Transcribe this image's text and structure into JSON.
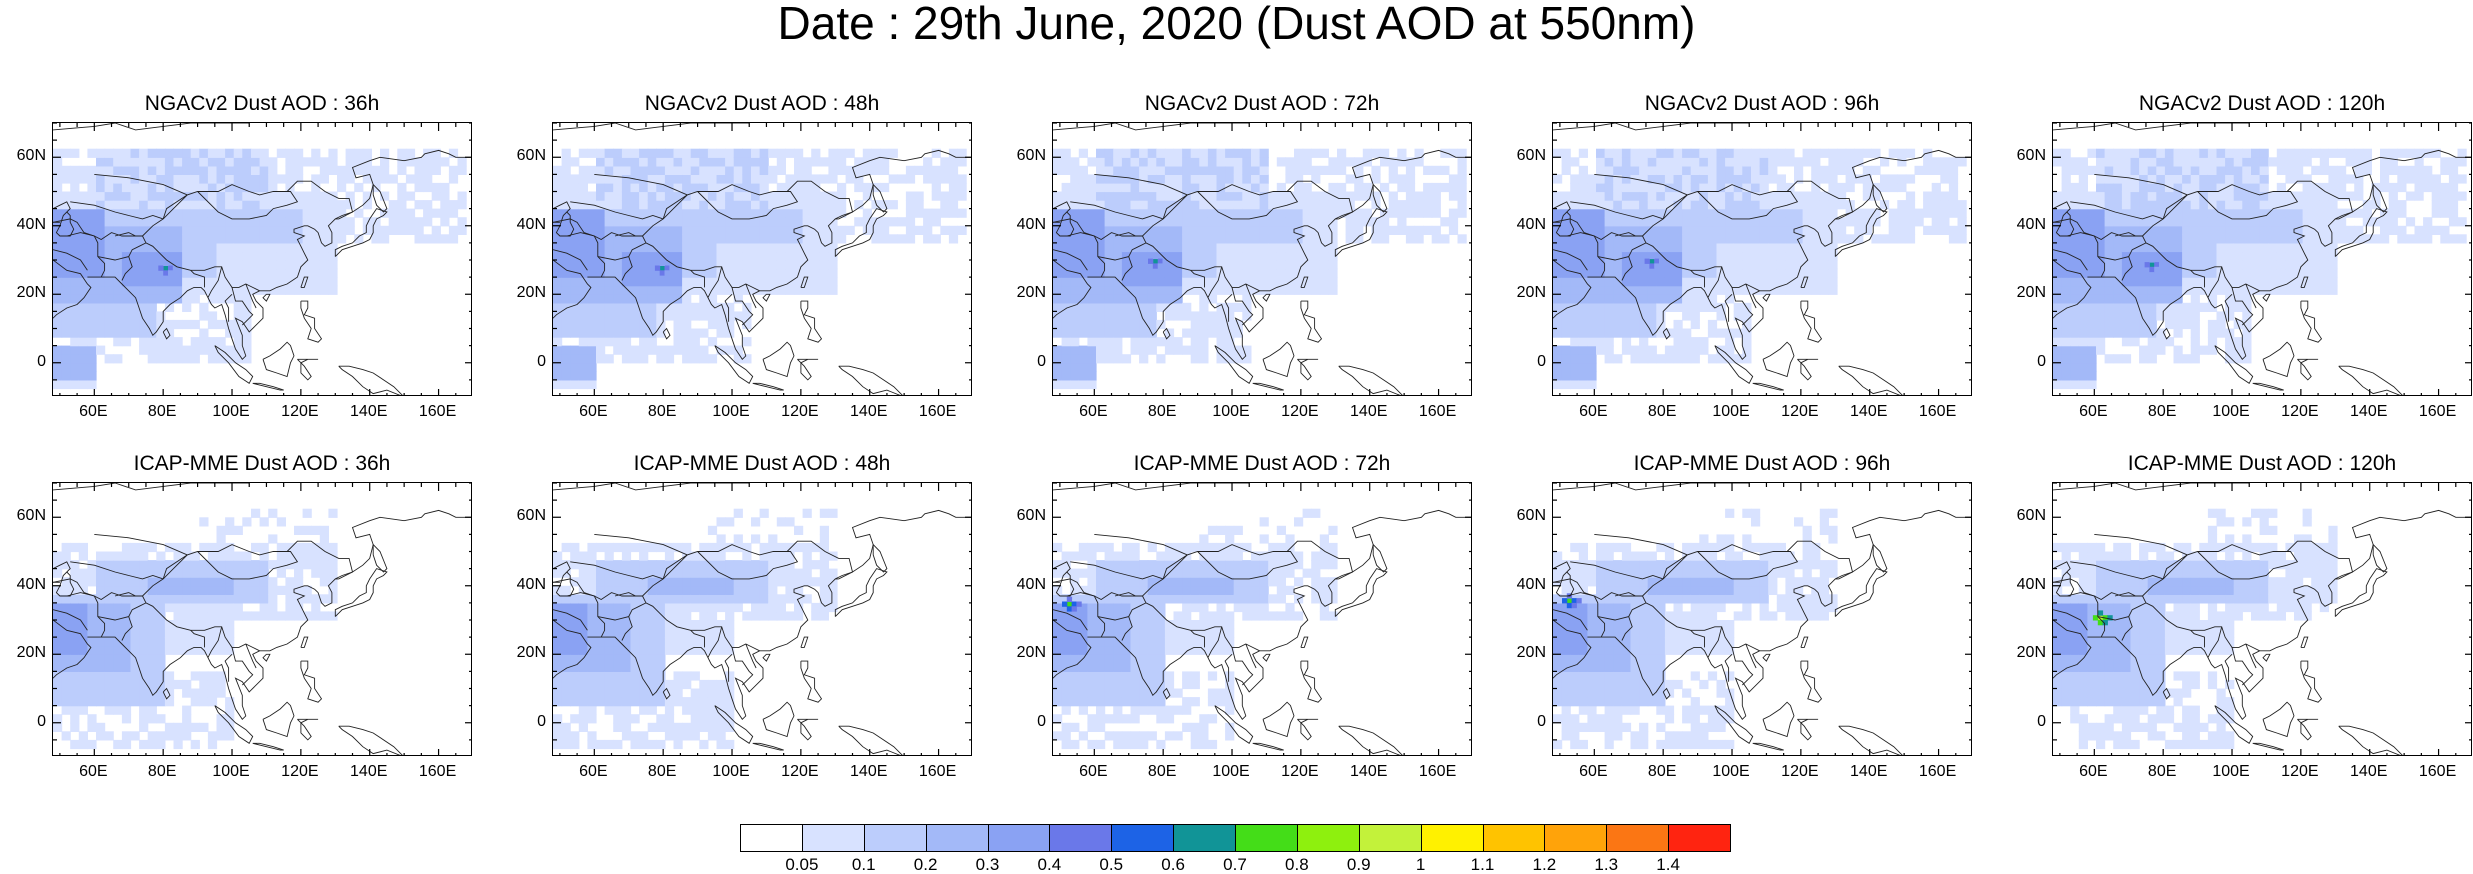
{
  "title": "Date : 29th June, 2020 (Dust AOD at 550nm)",
  "axes": {
    "lat_labels": [
      "60N",
      "40N",
      "20N",
      "0"
    ],
    "lat_values": [
      60,
      40,
      20,
      0
    ],
    "lon_labels": [
      "60E",
      "80E",
      "100E",
      "120E",
      "140E",
      "160E"
    ],
    "lon_values": [
      60,
      80,
      100,
      120,
      140,
      160
    ],
    "lon_range": [
      48,
      170
    ],
    "lat_range": [
      -10,
      70
    ]
  },
  "panels": [
    {
      "title": "NGACv2 Dust AOD : 36h",
      "model": "ngac",
      "lead": 36,
      "peak": [
        80,
        27
      ],
      "peak_level": 7
    },
    {
      "title": "NGACv2 Dust AOD : 48h",
      "model": "ngac",
      "lead": 48,
      "peak": [
        79,
        27
      ],
      "peak_level": 7
    },
    {
      "title": "NGACv2 Dust AOD : 72h",
      "model": "ngac",
      "lead": 72,
      "peak": [
        77,
        29
      ],
      "peak_level": 7
    },
    {
      "title": "NGACv2 Dust AOD : 96h",
      "model": "ngac",
      "lead": 96,
      "peak": [
        76,
        29
      ],
      "peak_level": 7
    },
    {
      "title": "NGACv2 Dust AOD : 120h",
      "model": "ngac",
      "lead": 120,
      "peak": [
        76,
        28
      ],
      "peak_level": 7
    },
    {
      "title": "ICAP-MME Dust AOD : 36h",
      "model": "icap",
      "lead": 36,
      "peak": null,
      "peak_level": 0
    },
    {
      "title": "ICAP-MME Dust AOD : 48h",
      "model": "icap",
      "lead": 48,
      "peak": null,
      "peak_level": 0
    },
    {
      "title": "ICAP-MME Dust AOD : 72h",
      "model": "icap",
      "lead": 72,
      "peak": [
        52,
        34
      ],
      "peak_level": 8
    },
    {
      "title": "ICAP-MME Dust AOD : 96h",
      "model": "icap",
      "lead": 96,
      "peak": [
        52,
        35
      ],
      "peak_level": 8
    },
    {
      "title": "ICAP-MME Dust AOD : 120h",
      "model": "icap",
      "lead": 120,
      "peak": [
        61,
        30
      ],
      "peak_level": 10
    }
  ],
  "colorbar": {
    "labels": [
      "0.05",
      "0.1",
      "0.2",
      "0.3",
      "0.4",
      "0.5",
      "0.6",
      "0.7",
      "0.8",
      "0.9",
      "1",
      "1.1",
      "1.2",
      "1.3",
      "1.4"
    ],
    "colors": [
      "#ffffff",
      "#d8e2ff",
      "#bccdfc",
      "#a3b9f8",
      "#8aa2f3",
      "#6a78e9",
      "#1d63e6",
      "#119497",
      "#44dd18",
      "#8ef00e",
      "#c3f23a",
      "#fff100",
      "#ffc300",
      "#ffa30a",
      "#fb7614",
      "#ff2410"
    ]
  }
}
